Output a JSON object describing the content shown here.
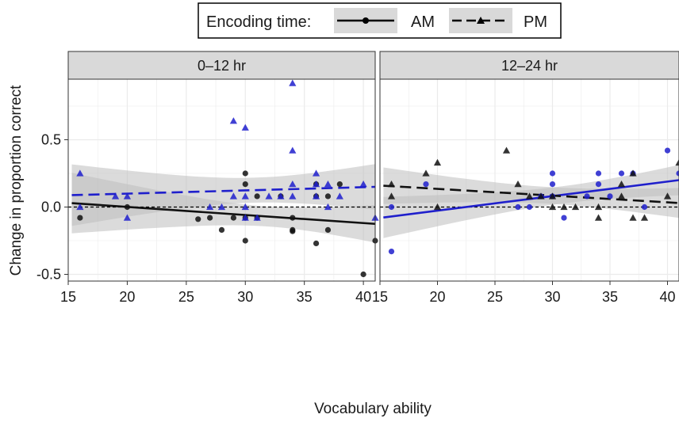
{
  "chart_data": {
    "type": "scatter",
    "legend": {
      "title": "Encoding time:",
      "placement": "top-center",
      "entries": [
        {
          "label": "AM",
          "marker": "circle",
          "line": "solid"
        },
        {
          "label": "PM",
          "marker": "triangle",
          "line": "dashed"
        }
      ]
    },
    "xlabel": "Vocabulary ability",
    "ylabel": "Change in proportion correct",
    "xlim": [
      15,
      41
    ],
    "ylim": [
      -0.55,
      0.95
    ],
    "x_ticks": [
      15,
      20,
      25,
      30,
      35,
      40
    ],
    "y_ticks": [
      -0.5,
      0.0,
      0.5
    ],
    "y_tick_labels": [
      "-0.5",
      "0.0",
      "0.5"
    ],
    "grid": true,
    "reference_line_y": 0,
    "colors": {
      "PM_in_0_12": "#1f1fcc",
      "AM_in_0_12": "#111111",
      "AM_in_12_24": "#1f1fcc",
      "PM_in_12_24": "#111111",
      "ribbon": "#bdbdbd",
      "strip": "#d9d9d9"
    },
    "facets": [
      {
        "label": "0–12 hr",
        "series": [
          {
            "name": "AM",
            "marker": "circle",
            "color": "#111111",
            "points": [
              [
                16,
                -0.08
              ],
              [
                20,
                0
              ],
              [
                26,
                -0.09
              ],
              [
                27,
                -0.08
              ],
              [
                28,
                -0.17
              ],
              [
                29,
                -0.08
              ],
              [
                30,
                -0.25
              ],
              [
                30,
                0.25
              ],
              [
                30,
                0.17
              ],
              [
                30,
                -0.08
              ],
              [
                31,
                -0.08
              ],
              [
                31,
                0.08
              ],
              [
                33,
                0.08
              ],
              [
                34,
                -0.08
              ],
              [
                34,
                -0.17
              ],
              [
                34,
                -0.18
              ],
              [
                36,
                0.17
              ],
              [
                36,
                -0.27
              ],
              [
                36,
                0.08
              ],
              [
                37,
                -0.17
              ],
              [
                37,
                0.08
              ],
              [
                38,
                0.17
              ],
              [
                40,
                -0.5
              ],
              [
                41,
                -0.25
              ]
            ],
            "fit": [
              [
                16,
                0.025
              ],
              [
                41,
                -0.125
              ]
            ]
          },
          {
            "name": "PM",
            "marker": "triangle",
            "color": "#1f1fcc",
            "points": [
              [
                16,
                0.25
              ],
              [
                16,
                0
              ],
              [
                19,
                0.08
              ],
              [
                20,
                0.08
              ],
              [
                20,
                -0.08
              ],
              [
                27,
                0
              ],
              [
                28,
                0
              ],
              [
                29,
                0.08
              ],
              [
                29,
                0.64
              ],
              [
                30,
                0.59
              ],
              [
                30,
                0.08
              ],
              [
                30,
                0
              ],
              [
                30,
                -0.08
              ],
              [
                31,
                -0.08
              ],
              [
                32,
                0.08
              ],
              [
                33,
                0.08
              ],
              [
                34,
                0.92
              ],
              [
                34,
                0.42
              ],
              [
                34,
                0.17
              ],
              [
                34,
                0.08
              ],
              [
                36,
                0.25
              ],
              [
                36,
                0.08
              ],
              [
                36,
                0.17
              ],
              [
                37,
                0
              ],
              [
                37,
                0.17
              ],
              [
                38,
                0.08
              ],
              [
                40,
                0.17
              ],
              [
                41,
                -0.08
              ]
            ],
            "fit": [
              [
                16,
                0.09
              ],
              [
                41,
                0.15
              ]
            ]
          }
        ]
      },
      {
        "label": "12–24 hr",
        "series": [
          {
            "name": "AM",
            "marker": "circle",
            "color": "#1f1fcc",
            "points": [
              [
                16,
                0
              ],
              [
                16,
                -0.33
              ],
              [
                19,
                0.17
              ],
              [
                27,
                0
              ],
              [
                28,
                0
              ],
              [
                29,
                0.08
              ],
              [
                30,
                0.25
              ],
              [
                30,
                0.17
              ],
              [
                30,
                0.08
              ],
              [
                31,
                -0.08
              ],
              [
                33,
                0.08
              ],
              [
                34,
                0.25
              ],
              [
                34,
                0.17
              ],
              [
                35,
                0.08
              ],
              [
                36,
                0.25
              ],
              [
                37,
                0.25
              ],
              [
                38,
                0
              ],
              [
                40,
                0.42
              ],
              [
                41,
                0.25
              ]
            ],
            "fit": [
              [
                16,
                -0.07
              ],
              [
                41,
                0.2
              ]
            ]
          },
          {
            "name": "PM",
            "marker": "triangle",
            "color": "#111111",
            "points": [
              [
                16,
                0.17
              ],
              [
                16,
                0.08
              ],
              [
                19,
                0.25
              ],
              [
                20,
                0.33
              ],
              [
                20,
                0
              ],
              [
                26,
                0.42
              ],
              [
                27,
                0.17
              ],
              [
                28,
                0.08
              ],
              [
                29,
                0.08
              ],
              [
                30,
                0
              ],
              [
                30,
                0.08
              ],
              [
                31,
                0
              ],
              [
                32,
                0
              ],
              [
                34,
                -0.08
              ],
              [
                34,
                0
              ],
              [
                36,
                0.17
              ],
              [
                36,
                0.08
              ],
              [
                37,
                0.25
              ],
              [
                37,
                -0.08
              ],
              [
                38,
                -0.08
              ],
              [
                40,
                0.08
              ],
              [
                41,
                0.33
              ]
            ],
            "fit": [
              [
                16,
                0.155
              ],
              [
                41,
                0.03
              ]
            ]
          }
        ]
      }
    ]
  }
}
